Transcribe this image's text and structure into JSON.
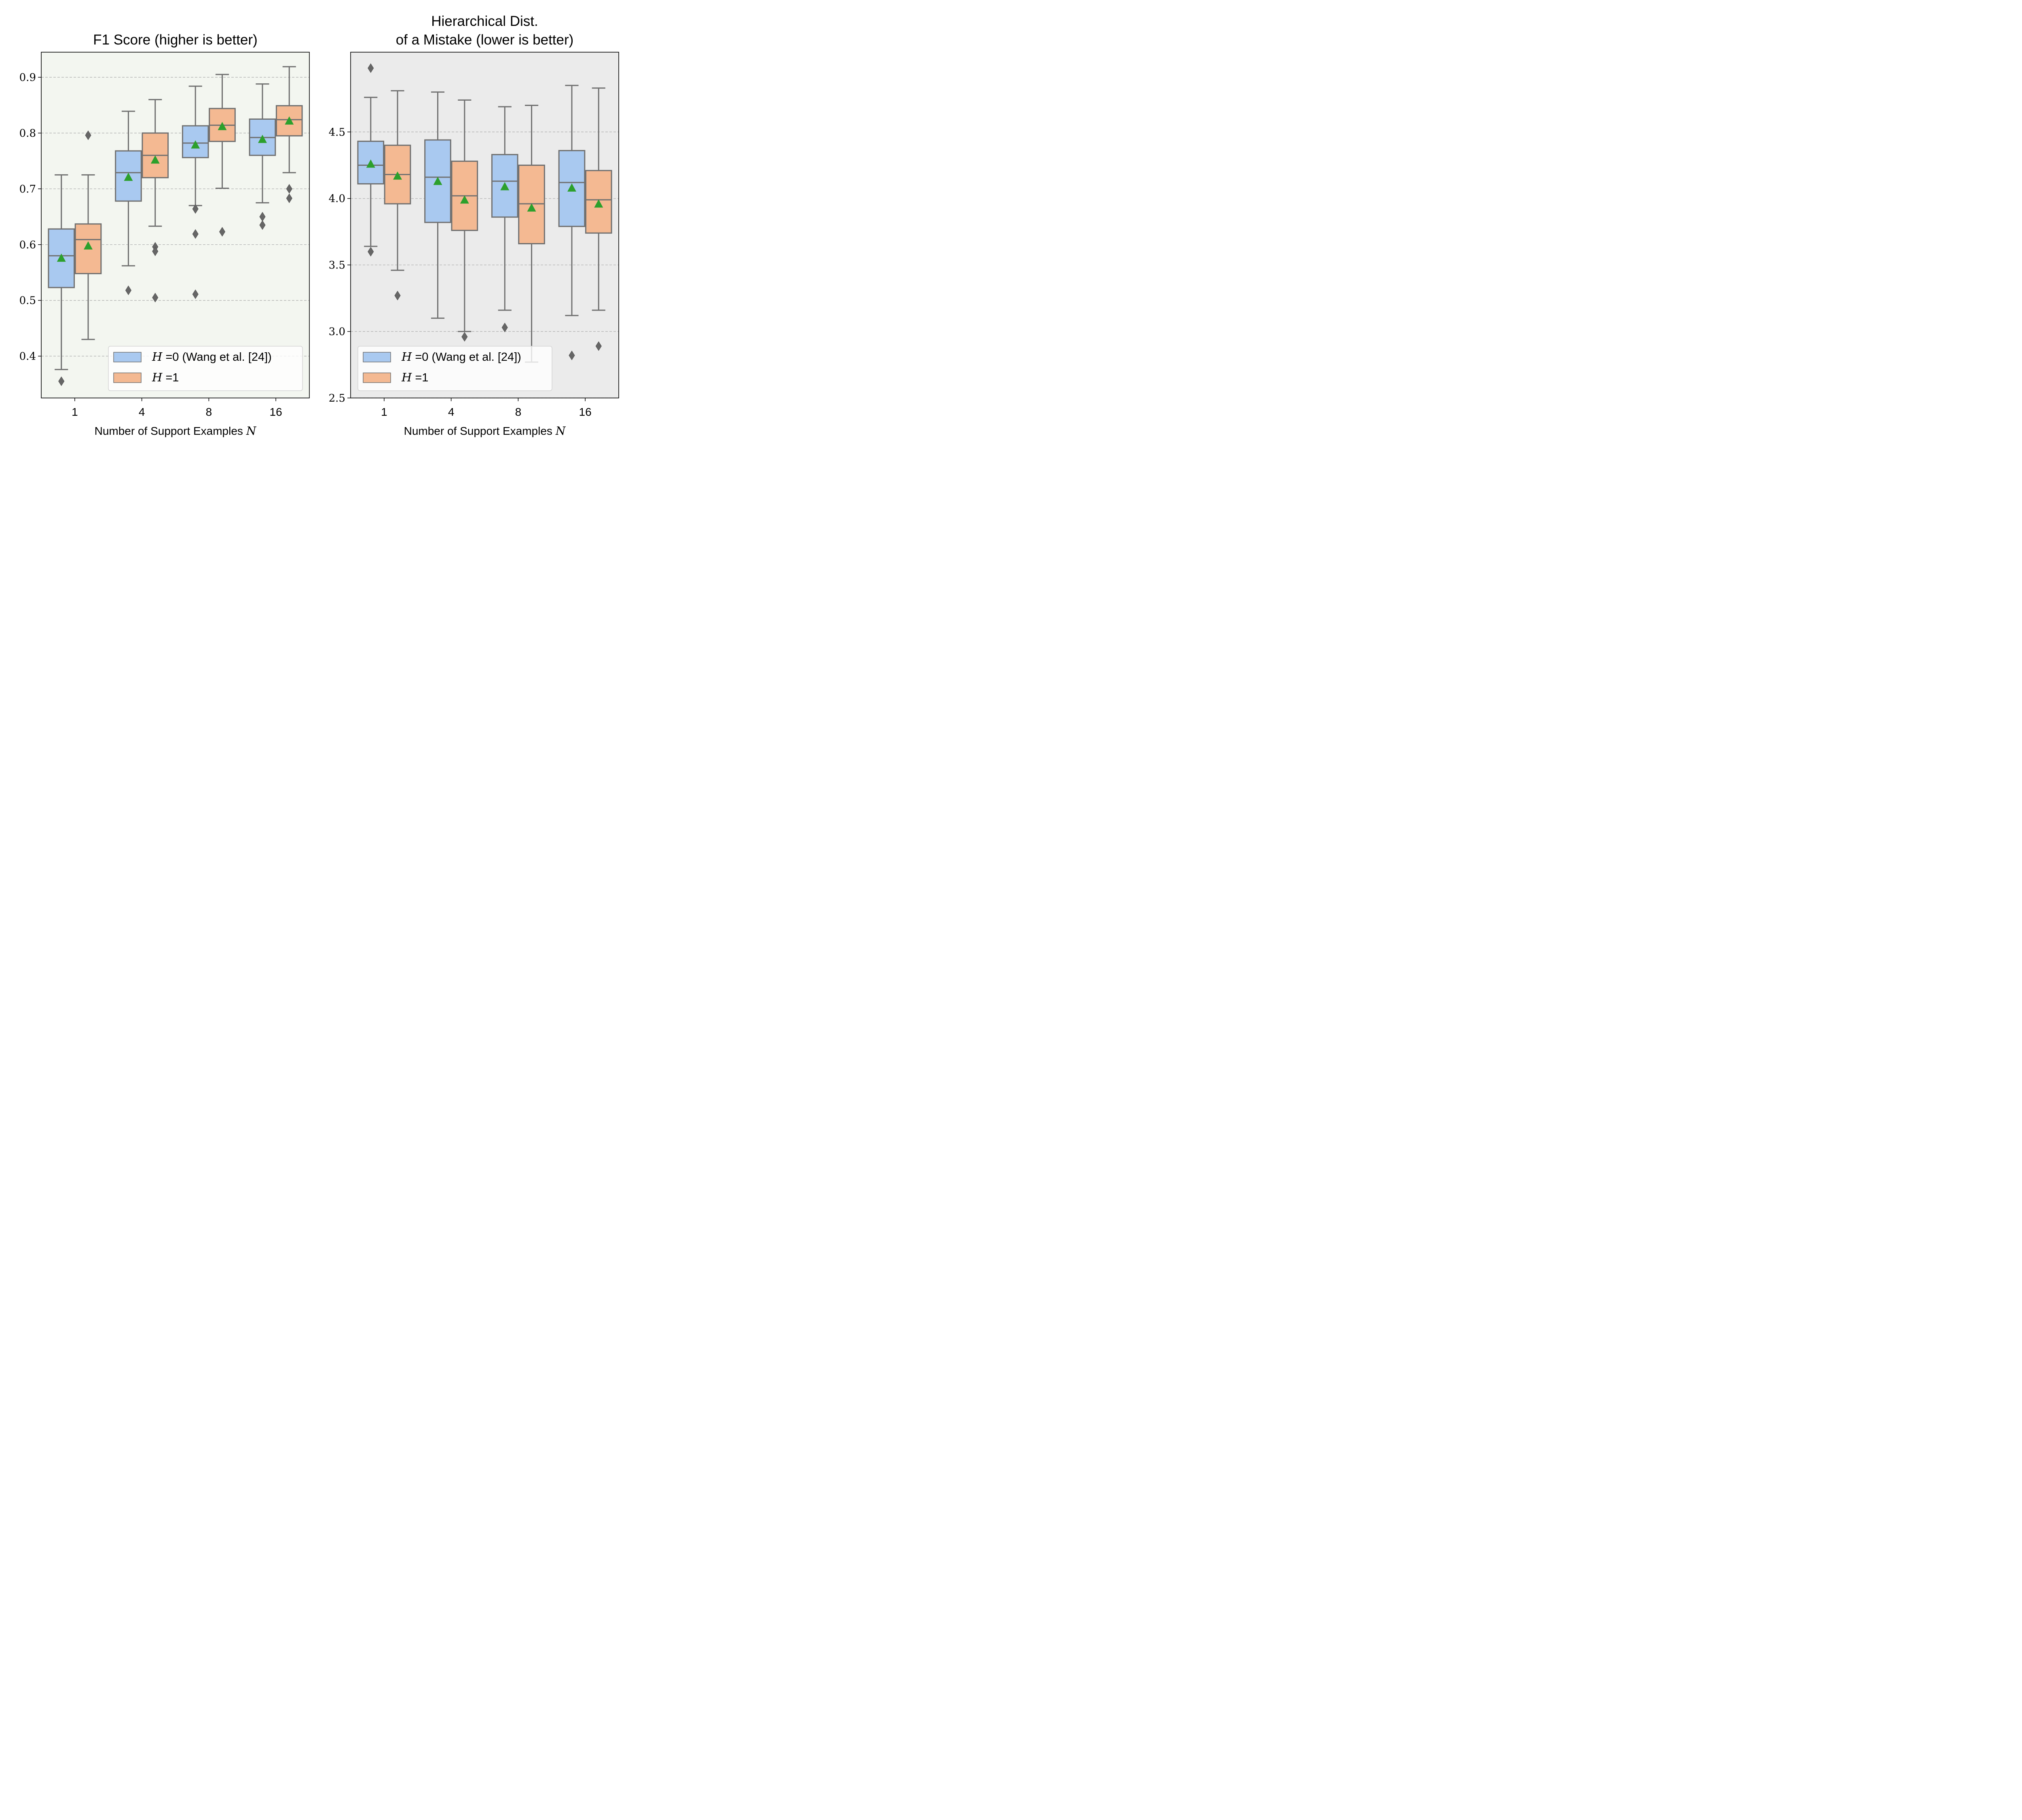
{
  "figure": {
    "colors": {
      "h0_fill": "#a9c9f0",
      "h1_fill": "#f4b992",
      "box_edge": "#707070",
      "mean_marker": "#2ca02c",
      "grid": "#b0b0b0",
      "left_panel_bg": "#f3f6f0",
      "right_panel_bg": "#ebebeb"
    },
    "legend": {
      "h0_symbol": "H",
      "h0_text": " =0 (Wang et al. [24])",
      "h1_symbol": "H",
      "h1_text": " =1"
    }
  },
  "chart_data": [
    {
      "type": "box",
      "title": "F1 Score (higher is better)",
      "xlabel": "Number of Support Examples",
      "xlabel_symbol": "N",
      "ylabel": "",
      "categories": [
        "1",
        "4",
        "8",
        "16"
      ],
      "ylim": [
        0.325,
        0.945
      ],
      "yticks": [
        "0.4",
        "0.5",
        "0.6",
        "0.7",
        "0.8",
        "0.9"
      ],
      "ytick_values": [
        0.4,
        0.5,
        0.6,
        0.7,
        0.8,
        0.9
      ],
      "grid": true,
      "legend_position": "lower right",
      "series": [
        {
          "name": "H =0 (Wang et al. [24])",
          "boxes": [
            {
              "whisker_low": 0.376,
              "q1": 0.523,
              "median": 0.58,
              "q3": 0.628,
              "whisker_high": 0.725,
              "mean": 0.576,
              "outliers": [
                0.355
              ]
            },
            {
              "whisker_low": 0.562,
              "q1": 0.678,
              "median": 0.729,
              "q3": 0.768,
              "whisker_high": 0.839,
              "mean": 0.721,
              "outliers": [
                0.518
              ]
            },
            {
              "whisker_low": 0.67,
              "q1": 0.756,
              "median": 0.782,
              "q3": 0.813,
              "whisker_high": 0.884,
              "mean": 0.779,
              "outliers": [
                0.664,
                0.619,
                0.511
              ]
            },
            {
              "whisker_low": 0.675,
              "q1": 0.76,
              "median": 0.792,
              "q3": 0.825,
              "whisker_high": 0.888,
              "mean": 0.789,
              "outliers": [
                0.65,
                0.635
              ]
            }
          ]
        },
        {
          "name": "H =1",
          "boxes": [
            {
              "whisker_low": 0.43,
              "q1": 0.548,
              "median": 0.609,
              "q3": 0.637,
              "whisker_high": 0.725,
              "mean": 0.598,
              "outliers": [
                0.796
              ]
            },
            {
              "whisker_low": 0.633,
              "q1": 0.72,
              "median": 0.76,
              "q3": 0.8,
              "whisker_high": 0.86,
              "mean": 0.752,
              "outliers": [
                0.596,
                0.588,
                0.505
              ]
            },
            {
              "whisker_low": 0.701,
              "q1": 0.785,
              "median": 0.814,
              "q3": 0.844,
              "whisker_high": 0.905,
              "mean": 0.812,
              "outliers": [
                0.623
              ]
            },
            {
              "whisker_low": 0.729,
              "q1": 0.795,
              "median": 0.824,
              "q3": 0.849,
              "whisker_high": 0.919,
              "mean": 0.822,
              "outliers": [
                0.7,
                0.683
              ]
            }
          ]
        }
      ]
    },
    {
      "type": "box",
      "title": "Hierarchical Dist.\nof a Mistake (lower is better)",
      "xlabel": "Number of Support Examples",
      "xlabel_symbol": "N",
      "ylabel": "",
      "categories": [
        "1",
        "4",
        "8",
        "16"
      ],
      "ylim": [
        2.5,
        5.1
      ],
      "yticks": [
        "2.5",
        "3.0",
        "3.5",
        "4.0",
        "4.5"
      ],
      "ytick_values": [
        2.5,
        3.0,
        3.5,
        4.0,
        4.5
      ],
      "grid": true,
      "legend_position": "lower left",
      "series": [
        {
          "name": "H =0 (Wang et al. [24])",
          "boxes": [
            {
              "whisker_low": 3.64,
              "q1": 4.11,
              "median": 4.25,
              "q3": 4.43,
              "whisker_high": 4.76,
              "mean": 4.26,
              "outliers": [
                3.6,
                4.98
              ]
            },
            {
              "whisker_low": 3.1,
              "q1": 3.82,
              "median": 4.16,
              "q3": 4.44,
              "whisker_high": 4.8,
              "mean": 4.13,
              "outliers": []
            },
            {
              "whisker_low": 3.16,
              "q1": 3.86,
              "median": 4.13,
              "q3": 4.33,
              "whisker_high": 4.69,
              "mean": 4.09,
              "outliers": [
                3.03
              ]
            },
            {
              "whisker_low": 3.12,
              "q1": 3.79,
              "median": 4.12,
              "q3": 4.36,
              "whisker_high": 4.85,
              "mean": 4.08,
              "outliers": [
                2.82
              ]
            }
          ]
        },
        {
          "name": "H =1",
          "boxes": [
            {
              "whisker_low": 3.46,
              "q1": 3.96,
              "median": 4.18,
              "q3": 4.4,
              "whisker_high": 4.81,
              "mean": 4.17,
              "outliers": [
                3.27
              ]
            },
            {
              "whisker_low": 3.0,
              "q1": 3.76,
              "median": 4.02,
              "q3": 4.28,
              "whisker_high": 4.74,
              "mean": 3.99,
              "outliers": [
                2.96
              ]
            },
            {
              "whisker_low": 2.77,
              "q1": 3.66,
              "median": 3.96,
              "q3": 4.25,
              "whisker_high": 4.7,
              "mean": 3.93,
              "outliers": []
            },
            {
              "whisker_low": 3.16,
              "q1": 3.74,
              "median": 3.99,
              "q3": 4.21,
              "whisker_high": 4.83,
              "mean": 3.96,
              "outliers": [
                2.89
              ]
            }
          ]
        }
      ]
    }
  ]
}
